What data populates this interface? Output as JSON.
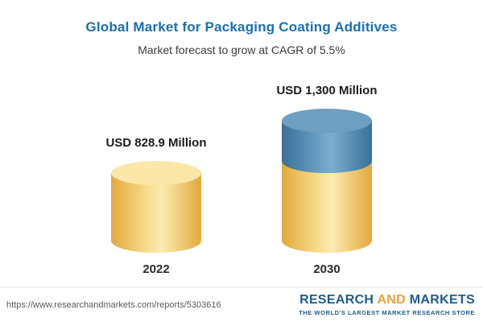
{
  "title": "Global Market for Packaging Coating Additives",
  "subtitle": "Market forecast to grow at CAGR of 5.5%",
  "chart_data": {
    "type": "bar",
    "title": "Global Market for Packaging Coating Additives",
    "subtitle": "Market forecast to grow at CAGR of 5.5%",
    "categories": [
      "2022",
      "2030"
    ],
    "values": [
      828.9,
      1300
    ],
    "value_labels": [
      "USD 828.9 Million",
      "USD 1,300 Million"
    ],
    "unit": "USD Million",
    "cagr_percent": 5.5,
    "ylim": [
      0,
      1300
    ],
    "grid": false,
    "legend": false,
    "bar_style": "3d-cylinder",
    "colors": {
      "base_segment": "#f3cf6e",
      "growth_segment": "#4f86ad",
      "title": "#1c6fb0"
    },
    "notes": "2030 bar: lower yellow segment equals 2022 value (828.9), upper blue segment is growth to 1,300"
  },
  "footer": {
    "url": "https://www.researchandmarkets.com/reports/5303616",
    "logo": {
      "research": "RESEARCH",
      "and": "AND",
      "markets": "MARKETS",
      "tagline": "THE WORLD'S LARGEST MARKET RESEARCH STORE"
    }
  }
}
